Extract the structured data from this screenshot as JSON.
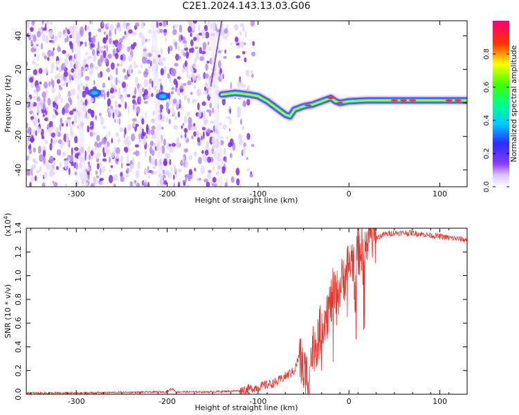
{
  "title": "C2E1.2024.143.13.03.G06",
  "chart_data": [
    {
      "type": "heatmap",
      "title": "",
      "xlabel": "Height of straight line (km)",
      "ylabel": "Frequency (Hz)",
      "xlim": [
        -355,
        130
      ],
      "ylim": [
        -50,
        49
      ],
      "xticks": [
        -300,
        -200,
        -100,
        0,
        100
      ],
      "yticks": [
        -40,
        -20,
        0,
        20,
        40
      ],
      "colorbar": {
        "label": "Normalized spectral amplitude",
        "range": [
          0,
          1
        ],
        "ticks": [
          "0.0",
          "0.2",
          "0.4",
          "0.6",
          "0.8"
        ],
        "colormap": "rainbow (white - purple - blue - cyan - green - yellow - red - magenta)"
      },
      "features": {
        "noise_region_x": [
          -355,
          -105
        ],
        "noise_color": "#7b2ff0",
        "signal_trace": {
          "x": [
            -140,
            -125,
            -110,
            -100,
            -90,
            -80,
            -70,
            -65,
            -60,
            -50,
            -40,
            -30,
            -25,
            -20,
            -15,
            -10,
            0,
            20,
            40,
            60,
            80,
            100,
            130
          ],
          "frequency": [
            5,
            6,
            5,
            4,
            1,
            -3,
            -7,
            -8,
            -4,
            -2,
            -1,
            1,
            2,
            3,
            1,
            0,
            1,
            1.5,
            1.5,
            1.5,
            1.5,
            1.5,
            1.5
          ]
        },
        "secondary_blobs": [
          {
            "x": -205,
            "frequency": 4
          },
          {
            "x": -280,
            "frequency": 6
          }
        ]
      }
    },
    {
      "type": "line",
      "title": "",
      "xlabel": "Height of straight line (km)",
      "ylabel": "SNR (10 * v/v)",
      "multiplier_label": "(x10",
      "multiplier_exp": "4",
      "multiplier_close": ")",
      "xlim": [
        -355,
        130
      ],
      "ylim": [
        0,
        1.4
      ],
      "xticks": [
        -300,
        -200,
        -100,
        0,
        100
      ],
      "yticks": [
        "0.0",
        "0.2",
        "0.4",
        "0.6",
        "0.8",
        "1.0",
        "1.2",
        "1.4"
      ],
      "series": [
        {
          "color": "#e8342c",
          "x": [
            -355,
            -300,
            -250,
            -200,
            -195,
            -190,
            -150,
            -120,
            -100,
            -80,
            -70,
            -60,
            -55,
            -50,
            -45,
            -40,
            -35,
            -30,
            -25,
            -20,
            -18,
            -15,
            -10,
            -5,
            0,
            10,
            20,
            30,
            40,
            50,
            60,
            70,
            80,
            90,
            100,
            110,
            120,
            130
          ],
          "y": [
            0.01,
            0.01,
            0.015,
            0.02,
            0.05,
            0.02,
            0.02,
            0.03,
            0.06,
            0.1,
            0.15,
            0.2,
            0.32,
            0.2,
            0.15,
            0.38,
            0.45,
            0.58,
            0.7,
            0.75,
            0.85,
            0.8,
            0.9,
            1.0,
            1.1,
            1.2,
            1.28,
            1.32,
            1.35,
            1.36,
            1.36,
            1.36,
            1.35,
            1.34,
            1.33,
            1.32,
            1.31,
            1.3
          ]
        }
      ]
    }
  ]
}
